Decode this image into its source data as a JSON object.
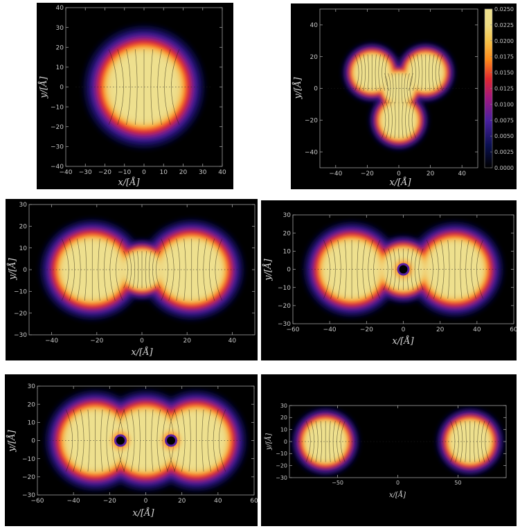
{
  "chart_data": [
    {
      "type": "heatmap",
      "shape": "trefoil-rounded",
      "xlabel": "x/[Å]",
      "ylabel": "y/[Å]",
      "xlim": [
        -40,
        40
      ],
      "ylim": [
        -40,
        40
      ],
      "xticks": [
        -40,
        -30,
        -20,
        -10,
        0,
        10,
        20,
        30,
        40
      ],
      "yticks": [
        -40,
        -30,
        -20,
        -10,
        0,
        10,
        20,
        30,
        40
      ],
      "lobes": [
        [
          0,
          0,
          20
        ]
      ],
      "streamlines": true,
      "colorbar": false
    },
    {
      "type": "heatmap",
      "shape": "trefoil",
      "xlabel": "x/[Å]",
      "ylabel": "y/[Å]",
      "xlim": [
        -50,
        50
      ],
      "ylim": [
        -50,
        50
      ],
      "xticks": [
        -40,
        -20,
        0,
        20,
        40
      ],
      "yticks": [
        -40,
        -20,
        0,
        20,
        40
      ],
      "lobes": [
        [
          -17,
          10,
          12
        ],
        [
          17,
          10,
          12
        ],
        [
          0,
          -20,
          12
        ],
        [
          0,
          0,
          10
        ]
      ],
      "streamlines": true,
      "colorbar": true,
      "colorbar_ticks": [
        "0.0250",
        "0.0225",
        "0.0200",
        "0.0175",
        "0.0150",
        "0.0125",
        "0.0100",
        "0.0075",
        "0.0050",
        "0.0025",
        "0.0000"
      ]
    },
    {
      "type": "heatmap",
      "shape": "peanut",
      "xlabel": "x/[Å]",
      "ylabel": "y/[Å]",
      "xlim": [
        -50,
        50
      ],
      "ylim": [
        -30,
        30
      ],
      "xticks": [
        -40,
        -20,
        0,
        20,
        40
      ],
      "yticks": [
        -30,
        -20,
        -10,
        0,
        10,
        20,
        30
      ],
      "lobes": [
        [
          -22,
          0,
          15
        ],
        [
          22,
          0,
          15
        ],
        [
          0,
          0,
          9
        ]
      ],
      "streamlines": true,
      "colorbar": false
    },
    {
      "type": "heatmap",
      "shape": "peanut-with-vortex",
      "xlabel": "x/[Å]",
      "ylabel": "y/[Å]",
      "xlim": [
        -60,
        60
      ],
      "ylim": [
        -30,
        30
      ],
      "xticks": [
        -60,
        -40,
        -20,
        0,
        20,
        40,
        60
      ],
      "yticks": [
        -30,
        -20,
        -10,
        0,
        10,
        20,
        30
      ],
      "lobes": [
        [
          -28,
          0,
          17
        ],
        [
          28,
          0,
          17
        ],
        [
          0,
          0,
          12
        ]
      ],
      "vortices": [
        [
          0,
          0
        ]
      ],
      "streamlines": true,
      "colorbar": false
    },
    {
      "type": "heatmap",
      "shape": "capsule-two-vortices",
      "xlabel": "x/[Å]",
      "ylabel": "y/[Å]",
      "xlim": [
        -60,
        60
      ],
      "ylim": [
        -30,
        30
      ],
      "xticks": [
        -60,
        -40,
        -20,
        0,
        20,
        40,
        60
      ],
      "yticks": [
        -30,
        -20,
        -10,
        0,
        10,
        20,
        30
      ],
      "lobes": [
        [
          -28,
          0,
          18
        ],
        [
          28,
          0,
          18
        ],
        [
          0,
          0,
          18
        ]
      ],
      "vortices": [
        [
          -14,
          0
        ],
        [
          14,
          0
        ]
      ],
      "streamlines": true,
      "colorbar": false
    },
    {
      "type": "heatmap",
      "shape": "two-separated-droplets",
      "xlabel": "x/[Å]",
      "ylabel": "y/[Å]",
      "xlim": [
        -90,
        90
      ],
      "ylim": [
        -30,
        30
      ],
      "xticks": [
        -50,
        0,
        50
      ],
      "yticks": [
        -30,
        -20,
        -10,
        0,
        10,
        20,
        30
      ],
      "lobes": [
        [
          -60,
          0,
          18
        ],
        [
          60,
          0,
          18
        ]
      ],
      "streamlines": true,
      "colorbar": false
    }
  ],
  "colors": {
    "background": "#000000",
    "core": "#eee08e",
    "edge_orange": "#ff9020",
    "edge_red": "#e02030",
    "edge_purple": "#6020a0",
    "edge_blue": "#101860",
    "streamline": "#1a1408",
    "axis": "#a0a0a0"
  }
}
